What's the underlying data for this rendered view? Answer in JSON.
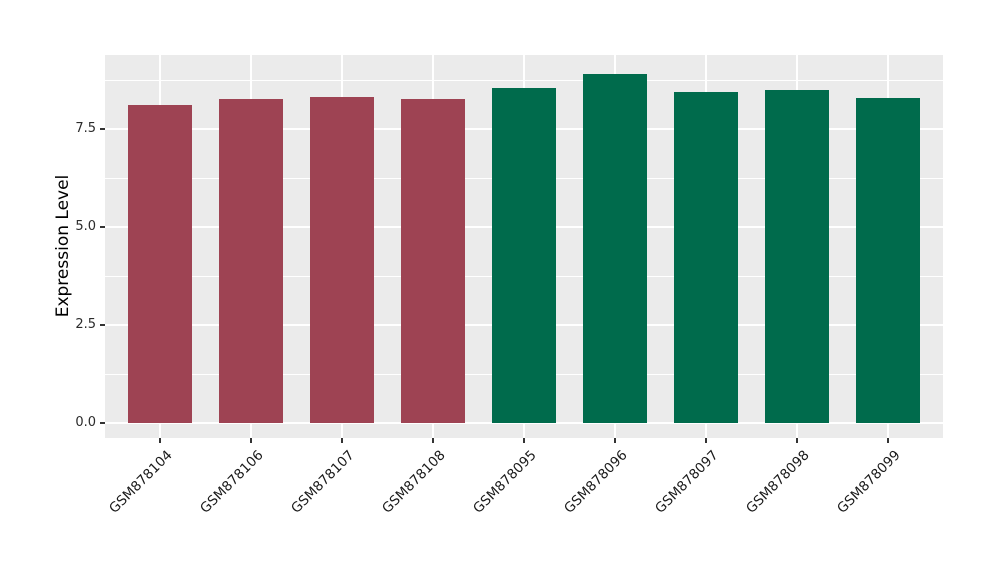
{
  "chart_data": {
    "type": "bar",
    "title": "",
    "xlabel": "",
    "ylabel": "Expression Level",
    "categories": [
      "GSM878104",
      "GSM878106",
      "GSM878107",
      "GSM878108",
      "GSM878095",
      "GSM878096",
      "GSM878097",
      "GSM878098",
      "GSM878099"
    ],
    "values": [
      8.11,
      8.27,
      8.32,
      8.27,
      8.55,
      8.9,
      8.44,
      8.49,
      8.29
    ],
    "bar_colors": [
      "#9E4353",
      "#9E4353",
      "#9E4353",
      "#9E4353",
      "#006B4C",
      "#006B4C",
      "#006B4C",
      "#006B4C",
      "#006B4C"
    ],
    "group_palette": {
      "maroon": "#9E4353",
      "green": "#006B4C"
    },
    "yticks": [
      0,
      2.5,
      5,
      7.5
    ],
    "ytick_labels": [
      "0.0",
      "2.5",
      "5.0",
      "7.5"
    ],
    "y_minor_ticks": [
      1.25,
      3.75,
      6.25,
      8.75
    ],
    "ylim": [
      -0.38,
      9.39
    ],
    "grid": "horizontal major+minor, vertical major at category centers",
    "legend_position": "none",
    "panel_bg": "#EBEBEB",
    "grid_color": "#FFFFFF",
    "bar_width_fraction": 0.7
  }
}
